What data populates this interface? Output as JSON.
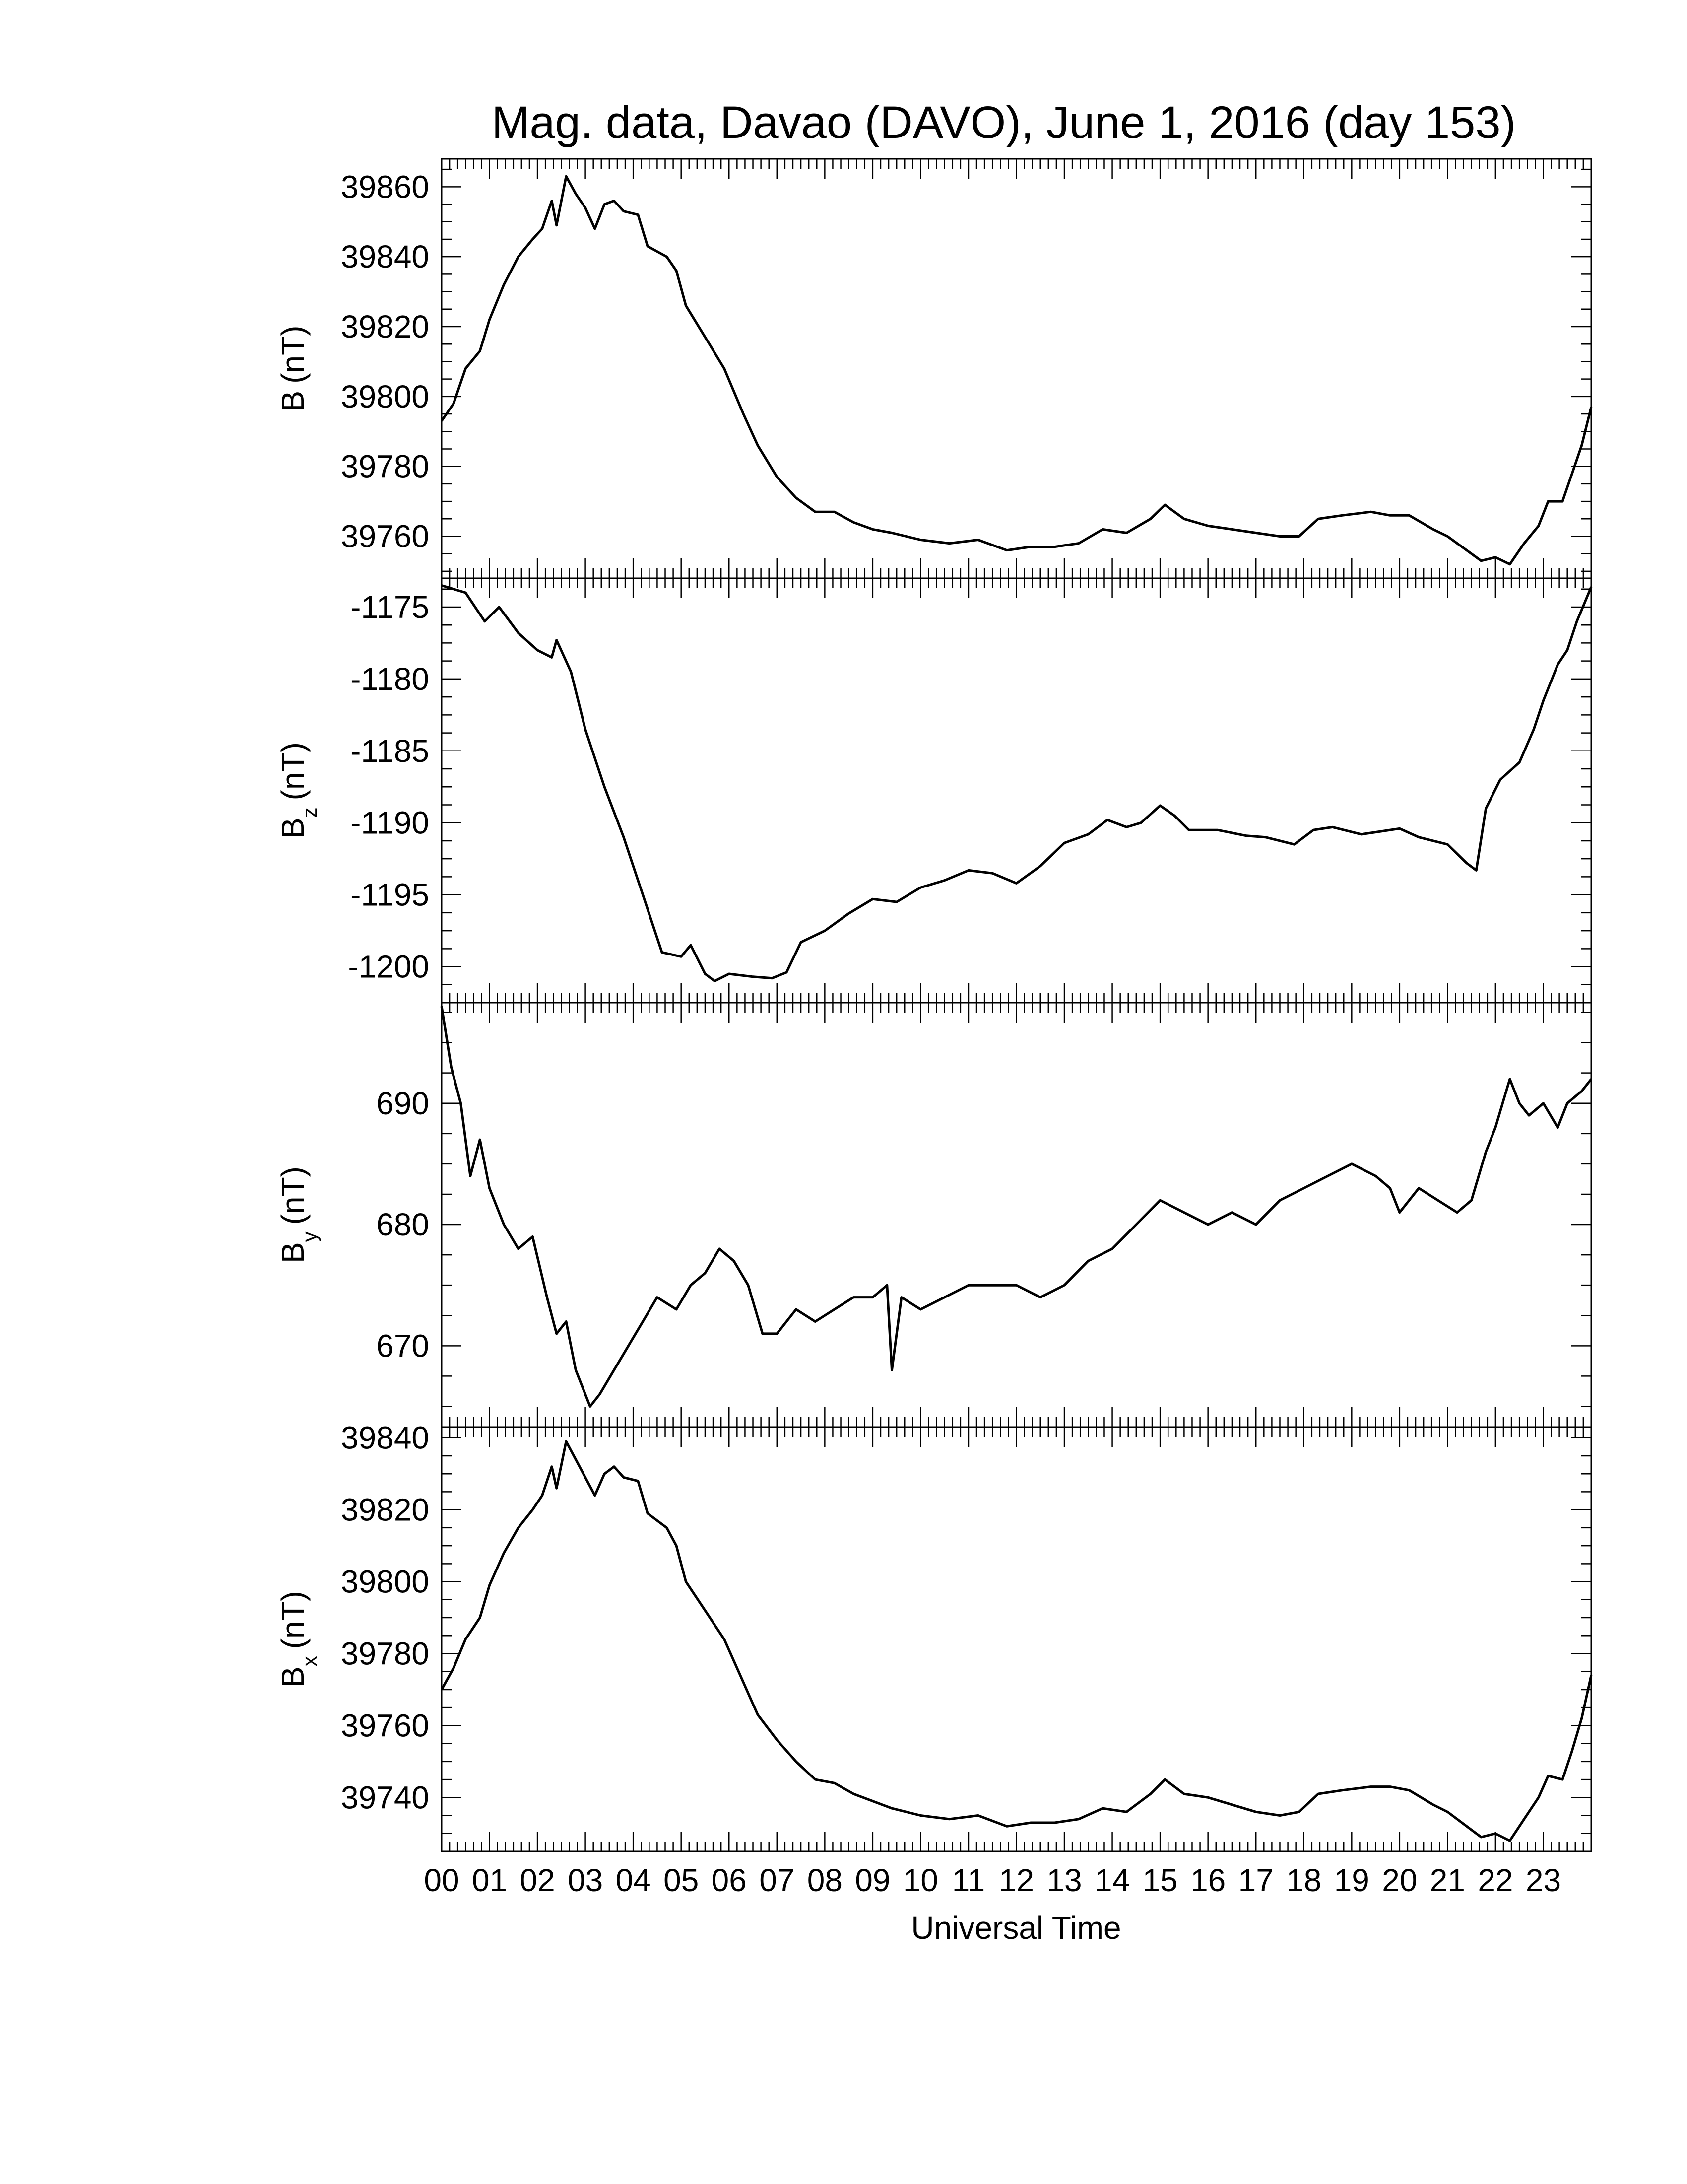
{
  "chart_data": {
    "type": "line",
    "title": "Mag. data, Davao (DAVO), June 1, 2016 (day 153)",
    "xlabel": "Universal Time",
    "x_tick_labels": [
      "00",
      "01",
      "02",
      "03",
      "04",
      "05",
      "06",
      "07",
      "08",
      "09",
      "10",
      "11",
      "12",
      "13",
      "14",
      "15",
      "16",
      "17",
      "18",
      "19",
      "20",
      "21",
      "22",
      "23"
    ],
    "xlim": [
      0,
      24
    ],
    "grid": false,
    "line_color": "#000000",
    "panels": [
      {
        "id": "b",
        "ylabel": "B (nT)",
        "ylabel_main": "B",
        "ylabel_sub": "",
        "ylabel_unit": "(nT)",
        "ylim": [
          39748,
          39868
        ],
        "yticks": [
          39760,
          39780,
          39800,
          39820,
          39840,
          39860
        ],
        "ytick_labels": [
          "39760",
          "39780",
          "39800",
          "39820",
          "39840",
          "39860"
        ],
        "points": [
          [
            0,
            39793
          ],
          [
            0.25,
            39798
          ],
          [
            0.5,
            39808
          ],
          [
            0.8,
            39813
          ],
          [
            1.0,
            39822
          ],
          [
            1.3,
            39832
          ],
          [
            1.6,
            39840
          ],
          [
            1.9,
            39845
          ],
          [
            2.1,
            39848
          ],
          [
            2.3,
            39856
          ],
          [
            2.4,
            39849
          ],
          [
            2.6,
            39863
          ],
          [
            2.8,
            39858
          ],
          [
            3.0,
            39854
          ],
          [
            3.2,
            39848
          ],
          [
            3.4,
            39855
          ],
          [
            3.6,
            39856
          ],
          [
            3.8,
            39853
          ],
          [
            4.1,
            39852
          ],
          [
            4.3,
            39843
          ],
          [
            4.7,
            39840
          ],
          [
            4.9,
            39836
          ],
          [
            5.1,
            39826
          ],
          [
            5.5,
            39817
          ],
          [
            5.9,
            39808
          ],
          [
            6.3,
            39795
          ],
          [
            6.6,
            39786
          ],
          [
            7.0,
            39777
          ],
          [
            7.4,
            39771
          ],
          [
            7.8,
            39767
          ],
          [
            8.2,
            39767
          ],
          [
            8.6,
            39764
          ],
          [
            9.0,
            39762
          ],
          [
            9.4,
            39761
          ],
          [
            10,
            39759
          ],
          [
            10.6,
            39758
          ],
          [
            11.2,
            39759
          ],
          [
            11.8,
            39756
          ],
          [
            12.3,
            39757
          ],
          [
            12.8,
            39757
          ],
          [
            13.3,
            39758
          ],
          [
            13.8,
            39762
          ],
          [
            14.3,
            39761
          ],
          [
            14.8,
            39765
          ],
          [
            15.1,
            39769
          ],
          [
            15.5,
            39765
          ],
          [
            16,
            39763
          ],
          [
            16.5,
            39762
          ],
          [
            17,
            39761
          ],
          [
            17.5,
            39760
          ],
          [
            17.9,
            39760
          ],
          [
            18.3,
            39765
          ],
          [
            18.8,
            39766
          ],
          [
            19.4,
            39767
          ],
          [
            19.8,
            39766
          ],
          [
            20.2,
            39766
          ],
          [
            20.7,
            39762
          ],
          [
            21.0,
            39760
          ],
          [
            21.4,
            39756
          ],
          [
            21.7,
            39753
          ],
          [
            22.0,
            39754
          ],
          [
            22.3,
            39752
          ],
          [
            22.6,
            39758
          ],
          [
            22.9,
            39763
          ],
          [
            23.1,
            39770
          ],
          [
            23.4,
            39770
          ],
          [
            23.6,
            39778
          ],
          [
            23.8,
            39786
          ],
          [
            24,
            39797
          ]
        ]
      },
      {
        "id": "bz",
        "ylabel": "Bz (nT)",
        "ylabel_main": "B",
        "ylabel_sub": "z",
        "ylabel_unit": "(nT)",
        "ylim": [
          -1202.5,
          -1173.0
        ],
        "yticks": [
          -1200,
          -1195,
          -1190,
          -1185,
          -1180,
          -1175
        ],
        "ytick_labels": [
          "-1200",
          "-1195",
          "-1190",
          "-1185",
          "-1180",
          "-1175"
        ],
        "points": [
          [
            0,
            -1173.5
          ],
          [
            0.5,
            -1174.0
          ],
          [
            0.9,
            -1176.0
          ],
          [
            1.2,
            -1175.0
          ],
          [
            1.6,
            -1176.8
          ],
          [
            2.0,
            -1178.0
          ],
          [
            2.3,
            -1178.5
          ],
          [
            2.4,
            -1177.3
          ],
          [
            2.7,
            -1179.5
          ],
          [
            3.0,
            -1183.5
          ],
          [
            3.4,
            -1187.5
          ],
          [
            3.8,
            -1191.0
          ],
          [
            4.2,
            -1195.0
          ],
          [
            4.6,
            -1199.0
          ],
          [
            5.0,
            -1199.3
          ],
          [
            5.2,
            -1198.5
          ],
          [
            5.5,
            -1200.5
          ],
          [
            5.7,
            -1201.0
          ],
          [
            6.0,
            -1200.5
          ],
          [
            6.5,
            -1200.7
          ],
          [
            6.9,
            -1200.8
          ],
          [
            7.2,
            -1200.4
          ],
          [
            7.5,
            -1198.3
          ],
          [
            8.0,
            -1197.5
          ],
          [
            8.5,
            -1196.3
          ],
          [
            9.0,
            -1195.3
          ],
          [
            9.5,
            -1195.5
          ],
          [
            10,
            -1194.5
          ],
          [
            10.5,
            -1194.0
          ],
          [
            11,
            -1193.3
          ],
          [
            11.5,
            -1193.5
          ],
          [
            12,
            -1194.2
          ],
          [
            12.5,
            -1193.0
          ],
          [
            13,
            -1191.4
          ],
          [
            13.5,
            -1190.8
          ],
          [
            13.9,
            -1189.8
          ],
          [
            14.3,
            -1190.3
          ],
          [
            14.6,
            -1190.0
          ],
          [
            15.0,
            -1188.8
          ],
          [
            15.3,
            -1189.5
          ],
          [
            15.6,
            -1190.5
          ],
          [
            16.2,
            -1190.5
          ],
          [
            16.8,
            -1190.9
          ],
          [
            17.2,
            -1191.0
          ],
          [
            17.8,
            -1191.5
          ],
          [
            18.2,
            -1190.5
          ],
          [
            18.6,
            -1190.3
          ],
          [
            19.2,
            -1190.8
          ],
          [
            19.6,
            -1190.6
          ],
          [
            20.0,
            -1190.4
          ],
          [
            20.4,
            -1191.0
          ],
          [
            21.0,
            -1191.5
          ],
          [
            21.4,
            -1192.8
          ],
          [
            21.6,
            -1193.3
          ],
          [
            21.8,
            -1189.0
          ],
          [
            22.1,
            -1187.0
          ],
          [
            22.5,
            -1185.8
          ],
          [
            22.8,
            -1183.5
          ],
          [
            23.0,
            -1181.5
          ],
          [
            23.3,
            -1179.0
          ],
          [
            23.5,
            -1178.0
          ],
          [
            23.7,
            -1176.0
          ],
          [
            24,
            -1173.6
          ]
        ]
      },
      {
        "id": "by",
        "ylabel": "By (nT)",
        "ylabel_main": "B",
        "ylabel_sub": "y",
        "ylabel_unit": "(nT)",
        "ylim": [
          663.3,
          698.3
        ],
        "yticks": [
          670,
          680,
          690
        ],
        "ytick_labels": [
          "670",
          "680",
          "690"
        ],
        "points": [
          [
            0,
            698
          ],
          [
            0.2,
            693
          ],
          [
            0.4,
            690
          ],
          [
            0.6,
            684
          ],
          [
            0.8,
            687
          ],
          [
            1.0,
            683
          ],
          [
            1.3,
            680
          ],
          [
            1.6,
            678
          ],
          [
            1.9,
            679
          ],
          [
            2.2,
            674
          ],
          [
            2.4,
            671
          ],
          [
            2.6,
            672
          ],
          [
            2.8,
            668
          ],
          [
            3.1,
            665
          ],
          [
            3.3,
            666
          ],
          [
            3.6,
            668
          ],
          [
            3.9,
            670
          ],
          [
            4.2,
            672
          ],
          [
            4.5,
            674
          ],
          [
            4.9,
            673
          ],
          [
            5.2,
            675
          ],
          [
            5.5,
            676
          ],
          [
            5.8,
            678
          ],
          [
            6.1,
            677
          ],
          [
            6.4,
            675
          ],
          [
            6.7,
            671
          ],
          [
            7.0,
            671
          ],
          [
            7.4,
            673
          ],
          [
            7.8,
            672
          ],
          [
            8.2,
            673
          ],
          [
            8.6,
            674
          ],
          [
            9.0,
            674
          ],
          [
            9.3,
            675
          ],
          [
            9.4,
            668
          ],
          [
            9.6,
            674
          ],
          [
            10.0,
            673
          ],
          [
            10.5,
            674
          ],
          [
            11,
            675
          ],
          [
            11.5,
            675
          ],
          [
            12,
            675
          ],
          [
            12.5,
            674
          ],
          [
            13,
            675
          ],
          [
            13.5,
            677
          ],
          [
            14,
            678
          ],
          [
            14.5,
            680
          ],
          [
            15,
            682
          ],
          [
            15.5,
            681
          ],
          [
            16,
            680
          ],
          [
            16.5,
            681
          ],
          [
            17,
            680
          ],
          [
            17.5,
            682
          ],
          [
            18,
            683
          ],
          [
            18.5,
            684
          ],
          [
            19,
            685
          ],
          [
            19.5,
            684
          ],
          [
            19.8,
            683
          ],
          [
            20.0,
            681
          ],
          [
            20.4,
            683
          ],
          [
            20.8,
            682
          ],
          [
            21.2,
            681
          ],
          [
            21.5,
            682
          ],
          [
            21.8,
            686
          ],
          [
            22.0,
            688
          ],
          [
            22.3,
            692
          ],
          [
            22.5,
            690
          ],
          [
            22.7,
            689
          ],
          [
            23.0,
            690
          ],
          [
            23.3,
            688
          ],
          [
            23.5,
            690
          ],
          [
            23.8,
            691
          ],
          [
            24,
            692
          ]
        ]
      },
      {
        "id": "bx",
        "ylabel": "Bx (nT)",
        "ylabel_main": "B",
        "ylabel_sub": "x",
        "ylabel_unit": "(nT)",
        "ylim": [
          39725,
          39843
        ],
        "yticks": [
          39740,
          39760,
          39780,
          39800,
          39820,
          39840
        ],
        "ytick_labels": [
          "39740",
          "39760",
          "39780",
          "39800",
          "39820",
          "39840"
        ],
        "points": [
          [
            0,
            39770
          ],
          [
            0.25,
            39776
          ],
          [
            0.5,
            39784
          ],
          [
            0.8,
            39790
          ],
          [
            1.0,
            39799
          ],
          [
            1.3,
            39808
          ],
          [
            1.6,
            39815
          ],
          [
            1.9,
            39820
          ],
          [
            2.1,
            39824
          ],
          [
            2.3,
            39832
          ],
          [
            2.4,
            39826
          ],
          [
            2.6,
            39839
          ],
          [
            2.8,
            39834
          ],
          [
            3.0,
            39829
          ],
          [
            3.2,
            39824
          ],
          [
            3.4,
            39830
          ],
          [
            3.6,
            39832
          ],
          [
            3.8,
            39829
          ],
          [
            4.1,
            39828
          ],
          [
            4.3,
            39819
          ],
          [
            4.7,
            39815
          ],
          [
            4.9,
            39810
          ],
          [
            5.1,
            39800
          ],
          [
            5.5,
            39792
          ],
          [
            5.9,
            39784
          ],
          [
            6.3,
            39772
          ],
          [
            6.6,
            39763
          ],
          [
            7.0,
            39756
          ],
          [
            7.4,
            39750
          ],
          [
            7.8,
            39745
          ],
          [
            8.2,
            39744
          ],
          [
            8.6,
            39741
          ],
          [
            9.0,
            39739
          ],
          [
            9.4,
            39737
          ],
          [
            10,
            39735
          ],
          [
            10.6,
            39734
          ],
          [
            11.2,
            39735
          ],
          [
            11.8,
            39732
          ],
          [
            12.3,
            39733
          ],
          [
            12.8,
            39733
          ],
          [
            13.3,
            39734
          ],
          [
            13.8,
            39737
          ],
          [
            14.3,
            39736
          ],
          [
            14.8,
            39741
          ],
          [
            15.1,
            39745
          ],
          [
            15.5,
            39741
          ],
          [
            16,
            39740
          ],
          [
            16.5,
            39738
          ],
          [
            17,
            39736
          ],
          [
            17.5,
            39735
          ],
          [
            17.9,
            39736
          ],
          [
            18.3,
            39741
          ],
          [
            18.8,
            39742
          ],
          [
            19.4,
            39743
          ],
          [
            19.8,
            39743
          ],
          [
            20.2,
            39742
          ],
          [
            20.7,
            39738
          ],
          [
            21.0,
            39736
          ],
          [
            21.4,
            39732
          ],
          [
            21.7,
            39729
          ],
          [
            22.0,
            39730
          ],
          [
            22.3,
            39728
          ],
          [
            22.6,
            39734
          ],
          [
            22.9,
            39740
          ],
          [
            23.1,
            39746
          ],
          [
            23.4,
            39745
          ],
          [
            23.6,
            39753
          ],
          [
            23.8,
            39762
          ],
          [
            24,
            39774
          ]
        ]
      }
    ]
  }
}
